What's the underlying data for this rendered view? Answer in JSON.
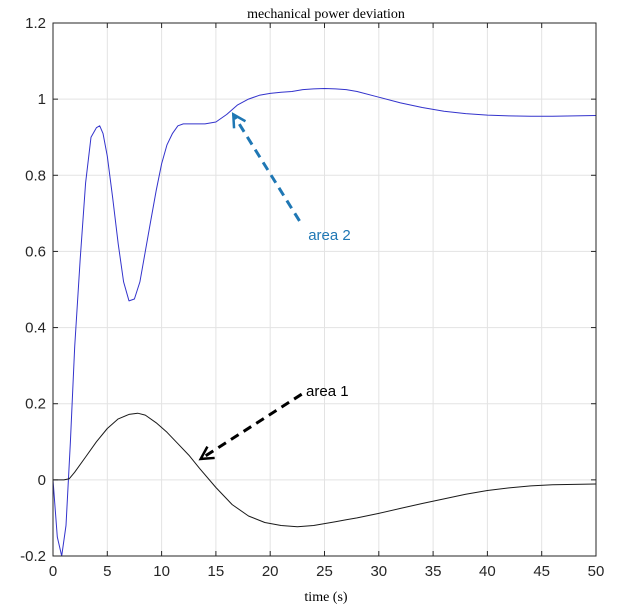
{
  "chart_data": {
    "type": "line",
    "title": "mechanical power deviation",
    "xlabel": "time (s)",
    "ylabel": "",
    "xlim": [
      0,
      50
    ],
    "ylim": [
      -0.2,
      1.2
    ],
    "xticks": [
      0,
      5,
      10,
      15,
      20,
      25,
      30,
      35,
      40,
      45,
      50
    ],
    "yticks": [
      -0.2,
      0,
      0.2,
      0.4,
      0.6,
      0.8,
      1,
      1.2
    ],
    "xtick_labels": [
      "0",
      "5",
      "10",
      "15",
      "20",
      "25",
      "30",
      "35",
      "40",
      "45",
      "50"
    ],
    "ytick_labels": [
      "-0.2",
      "0",
      "0.2",
      "0.4",
      "0.6",
      "0.8",
      "1",
      "1.2"
    ],
    "grid": true,
    "series": [
      {
        "name": "",
        "color": "#3333cc",
        "x": [
          0,
          0.4,
          0.8,
          1.2,
          1.6,
          2.0,
          2.5,
          3.0,
          3.5,
          4.0,
          4.3,
          4.6,
          5.0,
          5.5,
          6.0,
          6.5,
          7.0,
          7.5,
          8.0,
          8.5,
          9.0,
          9.5,
          10,
          10.5,
          11,
          11.5,
          12,
          13,
          14,
          15,
          16,
          17,
          18,
          19,
          20,
          21,
          22,
          23,
          24,
          25,
          26,
          27,
          28,
          30,
          32,
          34,
          36,
          38,
          40,
          42,
          44,
          46,
          48,
          50
        ],
        "y": [
          0,
          -0.15,
          -0.2,
          -0.12,
          0.1,
          0.35,
          0.58,
          0.78,
          0.9,
          0.925,
          0.93,
          0.91,
          0.85,
          0.74,
          0.62,
          0.52,
          0.47,
          0.475,
          0.52,
          0.6,
          0.68,
          0.76,
          0.83,
          0.88,
          0.91,
          0.93,
          0.935,
          0.935,
          0.935,
          0.94,
          0.96,
          0.985,
          1.0,
          1.01,
          1.015,
          1.018,
          1.02,
          1.025,
          1.027,
          1.028,
          1.027,
          1.025,
          1.02,
          1.005,
          0.99,
          0.978,
          0.968,
          0.962,
          0.958,
          0.956,
          0.955,
          0.955,
          0.956,
          0.957
        ]
      },
      {
        "name": "",
        "color": "#1a1a1a",
        "x": [
          0,
          1,
          1.5,
          2,
          3,
          4,
          5,
          6,
          7,
          7.8,
          8.5,
          9.5,
          10.5,
          11.5,
          12.5,
          13.5,
          15,
          16.5,
          18,
          19.5,
          21,
          22.5,
          24,
          25,
          26,
          27,
          28,
          30,
          32,
          34,
          36,
          38,
          40,
          42,
          44,
          46,
          48,
          50
        ],
        "y": [
          0,
          0,
          0.003,
          0.02,
          0.06,
          0.1,
          0.135,
          0.16,
          0.172,
          0.175,
          0.17,
          0.15,
          0.125,
          0.095,
          0.065,
          0.03,
          -0.02,
          -0.065,
          -0.095,
          -0.112,
          -0.12,
          -0.123,
          -0.12,
          -0.115,
          -0.11,
          -0.105,
          -0.1,
          -0.088,
          -0.075,
          -0.062,
          -0.05,
          -0.038,
          -0.028,
          -0.021,
          -0.016,
          -0.013,
          -0.012,
          -0.011
        ]
      }
    ],
    "annotations": [
      {
        "text": "area 2",
        "color": "#1f77b4",
        "text_x": 23.5,
        "text_y": 0.63,
        "arrow_from": [
          22.7,
          0.68
        ],
        "arrow_to": [
          16.6,
          0.96
        ]
      },
      {
        "text": "area 1",
        "color": "#000000",
        "text_x": 23.3,
        "text_y": 0.22,
        "arrow_from": [
          22.9,
          0.225
        ],
        "arrow_to": [
          13.6,
          0.055
        ]
      }
    ]
  }
}
